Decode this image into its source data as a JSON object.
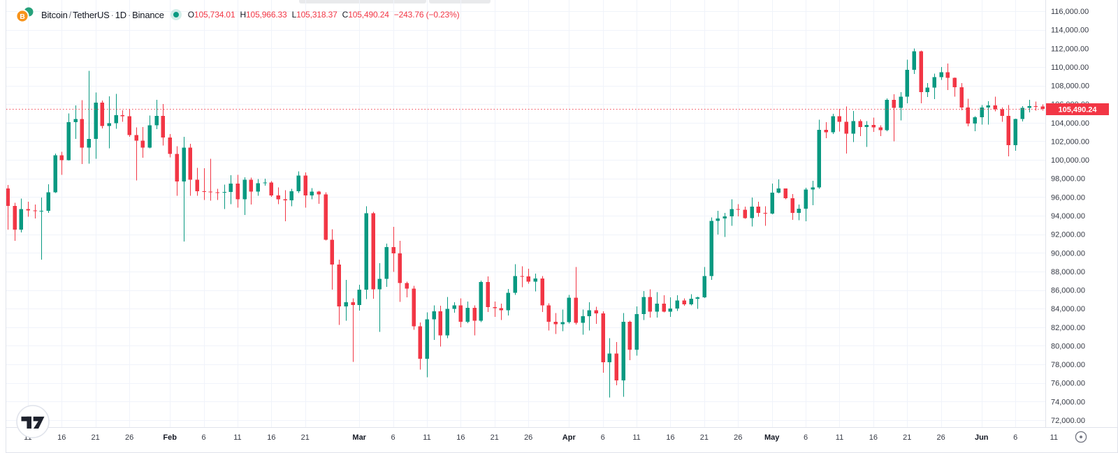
{
  "header": {
    "base": "Bitcoin",
    "sep1": "/",
    "quote": "TetherUS",
    "dot1": "·",
    "interval": "1D",
    "dot2": "·",
    "exchange": "Binance",
    "market_status": "live",
    "ohlc": [
      {
        "label": "O",
        "value": "105,734.01"
      },
      {
        "label": "H",
        "value": "105,966.33"
      },
      {
        "label": "L",
        "value": "105,318.37"
      },
      {
        "label": "C",
        "value": "105,490.24"
      }
    ],
    "change": "−243.76 (−0.23%)"
  },
  "colors": {
    "up": "#089981",
    "down": "#f23645",
    "accent_red": "#f23645",
    "text": "#131722",
    "axis_text": "#363a45",
    "muted": "#787b86",
    "grid": "#f0f3fa",
    "border": "#e0e3eb",
    "coin_orange": "#f7931a",
    "coin_teal": "#26a17b",
    "label_bg": "#f23645",
    "label_fg": "#ffffff"
  },
  "price_axis": {
    "max": 116000,
    "min": 72000,
    "step": 2000,
    "labels": [
      "116,000.00",
      "114,000.00",
      "112,000.00",
      "110,000.00",
      "108,000.00",
      "106,000.00",
      "104,000.00",
      "102,000.00",
      "100,000.00",
      "98,000.00",
      "96,000.00",
      "94,000.00",
      "92,000.00",
      "90,000.00",
      "88,000.00",
      "86,000.00",
      "84,000.00",
      "82,000.00",
      "80,000.00",
      "78,000.00",
      "76,000.00",
      "74,000.00",
      "72,000.00"
    ]
  },
  "time_axis": {
    "visible_labels": [
      "11",
      "16",
      "21",
      "26",
      "Feb",
      "6",
      "11",
      "16",
      "21",
      "Mar",
      "6",
      "11",
      "16",
      "21",
      "26",
      "Apr",
      "6",
      "11",
      "16",
      "21",
      "26",
      "May",
      "6",
      "11",
      "16",
      "21",
      "26",
      "Jun",
      "6",
      "11"
    ],
    "tick_days": [
      1,
      6,
      11,
      16,
      21,
      26
    ],
    "skip_dates": [
      "2025-02-26"
    ],
    "future_tick_label": "11"
  },
  "last_price": {
    "value": 105490.24,
    "label": "105,490.24"
  },
  "footer": {
    "logo": "TradingView",
    "scroll_button": "scroll-to-most-recent-bar"
  },
  "chart_data": {
    "type": "candlestick",
    "title": "Bitcoin / TetherUS · 1D · Binance",
    "symbol": "BTC/USDT",
    "interval": "1D",
    "exchange": "Binance",
    "ylim": [
      72000,
      116000
    ],
    "grid": true,
    "candles": [
      [
        "2025-01-08",
        96945,
        97300,
        92500,
        95043
      ],
      [
        "2025-01-09",
        95043,
        95400,
        91300,
        92484
      ],
      [
        "2025-01-10",
        92484,
        95836,
        92206,
        94701
      ],
      [
        "2025-01-11",
        94701,
        95500,
        93900,
        94566
      ],
      [
        "2025-01-12",
        94566,
        95200,
        93712,
        94488
      ],
      [
        "2025-01-13",
        94488,
        95940,
        89256,
        94516
      ],
      [
        "2025-01-14",
        94516,
        97371,
        94316,
        96534
      ],
      [
        "2025-01-15",
        96534,
        100700,
        96443,
        100497
      ],
      [
        "2025-01-16",
        100497,
        100866,
        98400,
        99987
      ],
      [
        "2025-01-17",
        99987,
        105000,
        99950,
        104077
      ],
      [
        "2025-01-18",
        104077,
        105865,
        102277,
        104409
      ],
      [
        "2025-01-19",
        104409,
        106422,
        99551,
        101332
      ],
      [
        "2025-01-20",
        101332,
        109588,
        99590,
        102260
      ],
      [
        "2025-01-21",
        102260,
        107240,
        100110,
        106146
      ],
      [
        "2025-01-22",
        106146,
        106396,
        103400,
        103653
      ],
      [
        "2025-01-23",
        103653,
        106850,
        101257,
        103960
      ],
      [
        "2025-01-24",
        103960,
        107120,
        103360,
        104819
      ],
      [
        "2025-01-25",
        104819,
        105343,
        104112,
        104714
      ],
      [
        "2025-01-26",
        104714,
        105500,
        102500,
        102682
      ],
      [
        "2025-01-27",
        102682,
        103500,
        97777,
        102082
      ],
      [
        "2025-01-28",
        102082,
        103550,
        100250,
        101335
      ],
      [
        "2025-01-29",
        101335,
        104782,
        101244,
        103733
      ],
      [
        "2025-01-30",
        103733,
        106457,
        103303,
        104722
      ],
      [
        "2025-01-31",
        104722,
        106012,
        101560,
        102405
      ],
      [
        "2025-02-01",
        102405,
        102785,
        100279,
        100655
      ],
      [
        "2025-02-02",
        100655,
        101456,
        96124,
        97688
      ],
      [
        "2025-02-03",
        97688,
        102500,
        91231,
        101328
      ],
      [
        "2025-02-04",
        101328,
        101735,
        96150,
        97871
      ],
      [
        "2025-02-05",
        97871,
        99149,
        96155,
        96615
      ],
      [
        "2025-02-06",
        96615,
        99120,
        95676,
        96593
      ],
      [
        "2025-02-07",
        96593,
        100138,
        95628,
        96529
      ],
      [
        "2025-02-08",
        96529,
        96890,
        95688,
        96482
      ],
      [
        "2025-02-09",
        96482,
        97323,
        94713,
        96554
      ],
      [
        "2025-02-10",
        96554,
        98345,
        95256,
        97437
      ],
      [
        "2025-02-11",
        97437,
        98404,
        94876,
        95778
      ],
      [
        "2025-02-12",
        95778,
        98119,
        94088,
        97869
      ],
      [
        "2025-02-13",
        97869,
        98083,
        95217,
        96608
      ],
      [
        "2025-02-14",
        96608,
        97930,
        96155,
        97508
      ],
      [
        "2025-02-15",
        97508,
        97972,
        97223,
        97570
      ],
      [
        "2025-02-16",
        97570,
        97704,
        96046,
        96175
      ],
      [
        "2025-02-17",
        96175,
        97046,
        95235,
        95773
      ],
      [
        "2025-02-18",
        95773,
        96748,
        93388,
        95639
      ],
      [
        "2025-02-19",
        95639,
        96900,
        95029,
        96635
      ],
      [
        "2025-02-20",
        96635,
        98756,
        96426,
        98333
      ],
      [
        "2025-02-21",
        98333,
        98641,
        94871,
        96181
      ],
      [
        "2025-02-22",
        96181,
        96980,
        95770,
        96577
      ],
      [
        "2025-02-23",
        96577,
        96670,
        95260,
        96273
      ],
      [
        "2025-02-24",
        96273,
        96500,
        91349,
        91418
      ],
      [
        "2025-02-25",
        91418,
        92540,
        86050,
        88736
      ],
      [
        "2025-02-26",
        88736,
        89286,
        82256,
        84250
      ],
      [
        "2025-02-27",
        84250,
        87078,
        82700,
        84705
      ],
      [
        "2025-02-28",
        84705,
        85120,
        78258,
        84373
      ],
      [
        "2025-03-01",
        84373,
        86558,
        83800,
        86031
      ],
      [
        "2025-03-02",
        86031,
        95000,
        85040,
        94261
      ],
      [
        "2025-03-03",
        94261,
        94416,
        85081,
        86065
      ],
      [
        "2025-03-04",
        86065,
        88911,
        81500,
        87222
      ],
      [
        "2025-03-05",
        87222,
        91000,
        86334,
        90623
      ],
      [
        "2025-03-06",
        90623,
        92810,
        87966,
        89961
      ],
      [
        "2025-03-07",
        89961,
        91283,
        84717,
        86742
      ],
      [
        "2025-03-08",
        86742,
        86900,
        85218,
        86154
      ],
      [
        "2025-03-09",
        86154,
        86471,
        81711,
        82100
      ],
      [
        "2025-03-10",
        82100,
        82500,
        77459,
        78595
      ],
      [
        "2025-03-11",
        78595,
        83600,
        76606,
        82862
      ],
      [
        "2025-03-12",
        82862,
        84358,
        80635,
        83722
      ],
      [
        "2025-03-13",
        83722,
        84300,
        79931,
        81115
      ],
      [
        "2025-03-14",
        81115,
        85263,
        80818,
        83983
      ],
      [
        "2025-03-15",
        83983,
        84676,
        83580,
        84343
      ],
      [
        "2025-03-16",
        84343,
        85117,
        82000,
        82579
      ],
      [
        "2025-03-17",
        82579,
        84756,
        82424,
        84075
      ],
      [
        "2025-03-18",
        84075,
        84334,
        81134,
        82718
      ],
      [
        "2025-03-19",
        82718,
        87022,
        82553,
        86854
      ],
      [
        "2025-03-20",
        86854,
        87470,
        83633,
        84175
      ],
      [
        "2025-03-21",
        84175,
        84775,
        83113,
        84043
      ],
      [
        "2025-03-22",
        84043,
        84522,
        82760,
        83843
      ],
      [
        "2025-03-23",
        83843,
        86100,
        83278,
        85700
      ],
      [
        "2025-03-24",
        85700,
        88772,
        85495,
        87498
      ],
      [
        "2025-03-25",
        87498,
        88543,
        86322,
        87471
      ],
      [
        "2025-03-26",
        87471,
        88280,
        86668,
        86900
      ],
      [
        "2025-03-27",
        86900,
        87786,
        85861,
        87227
      ],
      [
        "2025-03-28",
        87227,
        87489,
        83656,
        84359
      ],
      [
        "2025-03-29",
        84359,
        84575,
        81644,
        82597
      ],
      [
        "2025-03-30",
        82597,
        83510,
        81279,
        82334
      ],
      [
        "2025-03-31",
        82334,
        83911,
        81555,
        82548
      ],
      [
        "2025-04-01",
        82548,
        85487,
        82410,
        85169
      ],
      [
        "2025-04-02",
        85169,
        88466,
        82277,
        82485
      ],
      [
        "2025-04-03",
        82485,
        83909,
        81200,
        83205
      ],
      [
        "2025-04-04",
        83205,
        84696,
        81659,
        83843
      ],
      [
        "2025-04-05",
        83843,
        84207,
        82377,
        83504
      ],
      [
        "2025-04-06",
        83504,
        83704,
        77097,
        78214
      ],
      [
        "2025-04-07",
        78214,
        80823,
        74436,
        79163
      ],
      [
        "2025-04-08",
        79163,
        80420,
        75746,
        76273
      ],
      [
        "2025-04-09",
        76273,
        83541,
        74508,
        82573
      ],
      [
        "2025-04-10",
        82573,
        82700,
        78456,
        79591
      ],
      [
        "2025-04-11",
        79591,
        84247,
        78936,
        83404
      ],
      [
        "2025-04-12",
        83404,
        85877,
        82769,
        85254
      ],
      [
        "2025-04-13",
        85254,
        86096,
        83027,
        83684
      ],
      [
        "2025-04-14",
        83684,
        85785,
        83034,
        84542
      ],
      [
        "2025-04-15",
        84542,
        85428,
        83614,
        83659
      ],
      [
        "2025-04-16",
        83659,
        85210,
        83105,
        84030
      ],
      [
        "2025-04-17",
        84030,
        85434,
        83749,
        84895
      ],
      [
        "2025-04-18",
        84895,
        85102,
        84298,
        84450
      ],
      [
        "2025-04-19",
        84450,
        85568,
        84342,
        85063
      ],
      [
        "2025-04-20",
        85063,
        85295,
        83976,
        85224
      ],
      [
        "2025-04-21",
        85224,
        88470,
        85143,
        87518
      ],
      [
        "2025-04-22",
        87518,
        93817,
        87080,
        93441
      ],
      [
        "2025-04-23",
        93441,
        94535,
        91962,
        93699
      ],
      [
        "2025-04-24",
        93699,
        94291,
        91696,
        93943
      ],
      [
        "2025-04-25",
        93943,
        95768,
        92898,
        94720
      ],
      [
        "2025-04-26",
        94720,
        95251,
        93927,
        94646
      ],
      [
        "2025-04-27",
        94646,
        94968,
        93665,
        93754
      ],
      [
        "2025-04-28",
        93754,
        95939,
        92830,
        94978
      ],
      [
        "2025-04-29",
        94978,
        95490,
        93870,
        94284
      ],
      [
        "2025-04-30",
        94284,
        94998,
        92910,
        94207
      ],
      [
        "2025-05-01",
        94207,
        97437,
        94153,
        96494
      ],
      [
        "2025-05-02",
        96494,
        97905,
        96384,
        96910
      ],
      [
        "2025-05-03",
        96910,
        96935,
        95756,
        95891
      ],
      [
        "2025-05-04",
        95891,
        96319,
        93566,
        94315
      ],
      [
        "2025-05-05",
        94315,
        95193,
        93520,
        94748
      ],
      [
        "2025-05-06",
        94748,
        97000,
        93399,
        96802
      ],
      [
        "2025-05-07",
        96802,
        97762,
        95111,
        97032
      ],
      [
        "2025-05-08",
        97032,
        104324,
        96887,
        103241
      ],
      [
        "2025-05-09",
        103241,
        104056,
        102350,
        102970
      ],
      [
        "2025-05-10",
        102970,
        104966,
        102800,
        104696
      ],
      [
        "2025-05-11",
        104696,
        105472,
        103047,
        104106
      ],
      [
        "2025-05-12",
        104106,
        105747,
        100700,
        102812
      ],
      [
        "2025-05-13",
        102812,
        105262,
        101923,
        104169
      ],
      [
        "2025-05-14",
        104169,
        104353,
        102570,
        103539
      ],
      [
        "2025-05-15",
        103539,
        104190,
        101400,
        103744
      ],
      [
        "2025-05-16",
        103744,
        104550,
        103010,
        103489
      ],
      [
        "2025-05-17",
        103489,
        103717,
        102572,
        103191
      ],
      [
        "2025-05-18",
        103191,
        106597,
        103100,
        106446
      ],
      [
        "2025-05-19",
        106446,
        107069,
        102000,
        105606
      ],
      [
        "2025-05-20",
        105606,
        107307,
        104260,
        106791
      ],
      [
        "2025-05-21",
        106791,
        110797,
        106100,
        109678
      ],
      [
        "2025-05-22",
        109678,
        111980,
        109250,
        111673
      ],
      [
        "2025-05-23",
        111673,
        111740,
        106100,
        107287
      ],
      [
        "2025-05-24",
        107287,
        108268,
        106766,
        107791
      ],
      [
        "2025-05-25",
        107791,
        109263,
        106558,
        108896
      ],
      [
        "2025-05-26",
        108896,
        110000,
        108600,
        109440
      ],
      [
        "2025-05-27",
        109440,
        110382,
        107506,
        108811
      ],
      [
        "2025-05-28",
        108811,
        108878,
        106820,
        107802
      ],
      [
        "2025-05-29",
        107802,
        108249,
        105351,
        105641
      ],
      [
        "2025-05-30",
        105641,
        106560,
        103626,
        103900
      ],
      [
        "2025-05-31",
        103900,
        104698,
        103101,
        104598
      ],
      [
        "2025-06-01",
        104598,
        105900,
        103795,
        105652
      ],
      [
        "2025-06-02",
        105652,
        106300,
        103804,
        105881
      ],
      [
        "2025-06-03",
        105881,
        106794,
        105240,
        105432
      ],
      [
        "2025-06-04",
        105432,
        105636,
        104100,
        104732
      ],
      [
        "2025-06-05",
        104732,
        105910,
        100382,
        101576
      ],
      [
        "2025-06-06",
        101576,
        104420,
        100967,
        104390
      ],
      [
        "2025-06-07",
        104390,
        105770,
        104150,
        105615
      ],
      [
        "2025-06-08",
        105615,
        106470,
        105107,
        105793
      ],
      [
        "2025-06-09",
        105793,
        106260,
        105300,
        105734.01
      ],
      [
        "2025-06-10",
        105734.01,
        105966.33,
        105318.37,
        105490.24
      ]
    ]
  }
}
